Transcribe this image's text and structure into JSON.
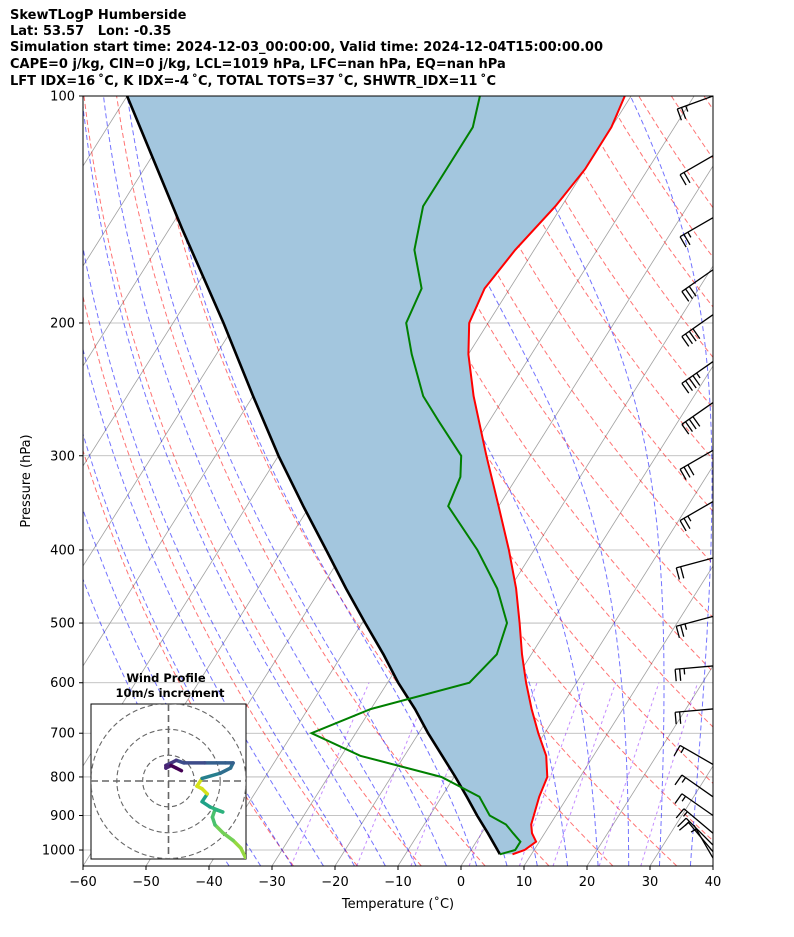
{
  "header": {
    "line1": "SkewTLogP Humberside",
    "line2": "Lat: 53.57   Lon: -0.35",
    "line3": "Simulation start time: 2024-12-03_00:00:00, Valid time: 2024-12-04T15:00:00.00",
    "line4": "CAPE=0 j/kg, CIN=0 j/kg, LCL=1019 hPa, LFC=nan hPa, EQ=nan hPa",
    "line5": "LFT IDX=16 ˚C, K IDX=-4 ˚C, TOTAL TOTS=37 ˚C, SHWTR_IDX=11 ˚C"
  },
  "chart_data": {
    "type": "line",
    "subtype": "skew-t log-p",
    "xlabel": "Temperature (˚C)",
    "ylabel": "Pressure (hPa)",
    "xlim": [
      -60,
      40
    ],
    "ylim": [
      1050,
      100
    ],
    "yscale": "log",
    "xticks": [
      "−60",
      "−50",
      "−40",
      "−30",
      "−20",
      "−10",
      "0",
      "10",
      "20",
      "30",
      "40"
    ],
    "yticks": [
      "100",
      "200",
      "300",
      "400",
      "500",
      "600",
      "700",
      "800",
      "900",
      "1000"
    ],
    "ytick_values": [
      100,
      200,
      300,
      400,
      500,
      600,
      700,
      800,
      900,
      1000
    ],
    "grid": true,
    "colors": {
      "temperature": "#ff0000",
      "dewpoint": "#008000",
      "parcel": "#000000",
      "fill": "#a3c6de",
      "dry_adiabat": "#ff0000",
      "moist_adiabat": "#0000ff",
      "mixing_ratio": "#7f00ff",
      "isotherm": "#a0a0a0"
    },
    "temperature": [
      [
        1013,
        7
      ],
      [
        1000,
        8.5
      ],
      [
        975,
        9.5
      ],
      [
        950,
        8
      ],
      [
        925,
        7
      ],
      [
        900,
        6.5
      ],
      [
        850,
        5.5
      ],
      [
        800,
        4.8
      ],
      [
        750,
        2.5
      ],
      [
        700,
        -1
      ],
      [
        650,
        -4.5
      ],
      [
        600,
        -8
      ],
      [
        550,
        -11.5
      ],
      [
        500,
        -15
      ],
      [
        450,
        -19
      ],
      [
        400,
        -24
      ],
      [
        350,
        -30
      ],
      [
        300,
        -37
      ],
      [
        250,
        -45
      ],
      [
        220,
        -50
      ],
      [
        200,
        -53
      ],
      [
        180,
        -54
      ],
      [
        160,
        -53
      ],
      [
        140,
        -51
      ],
      [
        125,
        -50
      ],
      [
        110,
        -50
      ],
      [
        100,
        -51
      ]
    ],
    "dewpoint": [
      [
        1013,
        5
      ],
      [
        1000,
        7
      ],
      [
        975,
        7
      ],
      [
        950,
        5
      ],
      [
        925,
        3
      ],
      [
        900,
        -0.5
      ],
      [
        850,
        -4
      ],
      [
        800,
        -12
      ],
      [
        750,
        -27
      ],
      [
        700,
        -37
      ],
      [
        650,
        -30
      ],
      [
        600,
        -17
      ],
      [
        550,
        -15.5
      ],
      [
        500,
        -17
      ],
      [
        450,
        -22
      ],
      [
        400,
        -29
      ],
      [
        350,
        -38
      ],
      [
        320,
        -39
      ],
      [
        300,
        -41
      ],
      [
        270,
        -48
      ],
      [
        250,
        -53
      ],
      [
        220,
        -59
      ],
      [
        200,
        -63
      ],
      [
        180,
        -64
      ],
      [
        160,
        -69
      ],
      [
        140,
        -72
      ],
      [
        125,
        -72
      ],
      [
        110,
        -72
      ],
      [
        100,
        -74
      ]
    ],
    "parcel": [
      [
        1013,
        5
      ],
      [
        1000,
        4.2
      ],
      [
        950,
        1
      ],
      [
        900,
        -2.5
      ],
      [
        850,
        -6
      ],
      [
        800,
        -9.8
      ],
      [
        750,
        -14
      ],
      [
        700,
        -18.5
      ],
      [
        650,
        -23
      ],
      [
        600,
        -28.3
      ],
      [
        550,
        -33.5
      ],
      [
        500,
        -39.5
      ],
      [
        450,
        -46
      ],
      [
        400,
        -53
      ],
      [
        350,
        -61
      ],
      [
        300,
        -70
      ],
      [
        250,
        -80
      ],
      [
        200,
        -92
      ],
      [
        150,
        -108
      ],
      [
        100,
        -130
      ]
    ],
    "wind_barbs": [
      {
        "pressure": 100,
        "speed_kt": 25,
        "direction_deg": 290
      },
      {
        "pressure": 120,
        "speed_kt": 20,
        "direction_deg": 300
      },
      {
        "pressure": 145,
        "speed_kt": 25,
        "direction_deg": 300
      },
      {
        "pressure": 170,
        "speed_kt": 30,
        "direction_deg": 305
      },
      {
        "pressure": 195,
        "speed_kt": 40,
        "direction_deg": 305
      },
      {
        "pressure": 225,
        "speed_kt": 45,
        "direction_deg": 305
      },
      {
        "pressure": 255,
        "speed_kt": 40,
        "direction_deg": 305
      },
      {
        "pressure": 295,
        "speed_kt": 30,
        "direction_deg": 300
      },
      {
        "pressure": 345,
        "speed_kt": 25,
        "direction_deg": 300
      },
      {
        "pressure": 410,
        "speed_kt": 20,
        "direction_deg": 285
      },
      {
        "pressure": 490,
        "speed_kt": 25,
        "direction_deg": 285
      },
      {
        "pressure": 570,
        "speed_kt": 25,
        "direction_deg": 275
      },
      {
        "pressure": 650,
        "speed_kt": 20,
        "direction_deg": 275
      },
      {
        "pressure": 770,
        "speed_kt": 15,
        "direction_deg": 240
      },
      {
        "pressure": 850,
        "speed_kt": 15,
        "direction_deg": 235
      },
      {
        "pressure": 900,
        "speed_kt": 15,
        "direction_deg": 235
      },
      {
        "pressure": 950,
        "speed_kt": 15,
        "direction_deg": 230
      },
      {
        "pressure": 985,
        "speed_kt": 15,
        "direction_deg": 225
      },
      {
        "pressure": 1005,
        "speed_kt": 10,
        "direction_deg": 220
      },
      {
        "pressure": 1025,
        "speed_kt": 5,
        "direction_deg": 210
      }
    ],
    "hodograph": {
      "title": "Wind Profile",
      "subtitle": "10m/s increment",
      "rings_ms": [
        10,
        20,
        30
      ],
      "range_ms": 30,
      "points_uv": [
        [
          30,
          -30
        ],
        [
          28,
          -26
        ],
        [
          25,
          -23
        ],
        [
          21,
          -20
        ],
        [
          18,
          -17
        ],
        [
          17,
          -14
        ],
        [
          18,
          -11
        ],
        [
          21,
          -12
        ],
        [
          16,
          -10
        ],
        [
          13,
          -8
        ],
        [
          15,
          -5
        ],
        [
          13,
          -3
        ],
        [
          11,
          -2
        ],
        [
          13,
          1
        ],
        [
          20,
          3
        ],
        [
          24,
          5
        ],
        [
          25,
          7
        ],
        [
          22,
          7
        ],
        [
          14,
          7
        ],
        [
          6,
          7
        ],
        [
          3,
          8
        ],
        [
          1,
          7
        ],
        [
          -1,
          6
        ],
        [
          -1,
          5
        ],
        [
          1,
          6
        ],
        [
          3,
          5
        ],
        [
          5,
          4
        ]
      ]
    }
  }
}
